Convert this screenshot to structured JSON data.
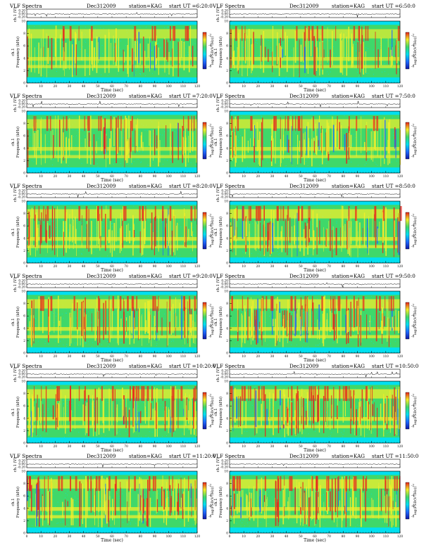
{
  "header_fields": {
    "title": "VLF Spectra",
    "date": "Dec312009",
    "station": "station=KAG",
    "start_prefix": "start UT ="
  },
  "axis_labels": {
    "ch1_top": "ch.1",
    "ch1_unit": "(V)",
    "ylabel_ch1": "ch.1",
    "ylabel_freq": "Frequency (kHz)",
    "xlabel": "Time (sec)",
    "colorbar_label": "log(PSD(V²/Hz))"
  },
  "x_ticks": [
    "0",
    "10",
    "20",
    "30",
    "40",
    "50",
    "60",
    "70",
    "80",
    "90",
    "100",
    "110",
    "120"
  ],
  "y_ticks": [
    "0",
    "2",
    "4",
    "6",
    "8",
    "10"
  ],
  "wave_ticks": [
    "0.20",
    "0.00",
    "-0.20"
  ],
  "colorbar_ticks": [
    "-2",
    "-4",
    "-6",
    "-8"
  ],
  "colors": {
    "background_cyan": "#00e0f0",
    "band_green": "#3fd86a",
    "yellow": "#f5ef2a",
    "red": "#e8231b",
    "blue": "#1f6bff",
    "dark_blue": "#1017a8"
  },
  "chart_data": [
    {
      "type": "heatmap",
      "panel": "row1-left",
      "start_ut": "6:20:0",
      "title": "VLF Spectra",
      "date": "Dec312009",
      "station": "KAG",
      "xlabel": "Time (sec)",
      "ylabel": "Frequency (kHz)",
      "xlim": [
        0,
        120
      ],
      "ylim": [
        0,
        10
      ],
      "waveform_ylim": [
        -0.2,
        0.2
      ],
      "activity": 0.35
    },
    {
      "type": "heatmap",
      "panel": "row1-right",
      "start_ut": "6:50:0",
      "title": "VLF Spectra",
      "date": "Dec312009",
      "station": "KAG",
      "xlabel": "Time (sec)",
      "ylabel": "Frequency (kHz)",
      "xlim": [
        0,
        120
      ],
      "ylim": [
        0,
        10
      ],
      "waveform_ylim": [
        -0.2,
        0.2
      ],
      "activity": 0.4
    },
    {
      "type": "heatmap",
      "panel": "row2-left",
      "start_ut": "7:20:0",
      "title": "VLF Spectra",
      "date": "Dec312009",
      "station": "KAG",
      "xlabel": "Time (sec)",
      "ylabel": "Frequency (kHz)",
      "xlim": [
        0,
        120
      ],
      "ylim": [
        0,
        10
      ],
      "waveform_ylim": [
        -0.2,
        0.2
      ],
      "activity": 0.42
    },
    {
      "type": "heatmap",
      "panel": "row2-right",
      "start_ut": "7:50:0",
      "title": "VLF Spectra",
      "date": "Dec312009",
      "station": "KAG",
      "xlabel": "Time (sec)",
      "ylabel": "Frequency (kHz)",
      "xlim": [
        0,
        120
      ],
      "ylim": [
        0,
        10
      ],
      "waveform_ylim": [
        -0.2,
        0.2
      ],
      "activity": 0.48
    },
    {
      "type": "heatmap",
      "panel": "row3-left",
      "start_ut": "8:20:0",
      "title": "VLF Spectra",
      "date": "Dec312009",
      "station": "KAG",
      "xlabel": "Time (sec)",
      "ylabel": "Frequency (kHz)",
      "xlim": [
        0,
        120
      ],
      "ylim": [
        0,
        10
      ],
      "waveform_ylim": [
        -0.2,
        0.2
      ],
      "activity": 0.55
    },
    {
      "type": "heatmap",
      "panel": "row3-right",
      "start_ut": "8:50:0",
      "title": "VLF Spectra",
      "date": "Dec312009",
      "station": "KAG",
      "xlabel": "Time (sec)",
      "ylabel": "Frequency (kHz)",
      "xlim": [
        0,
        120
      ],
      "ylim": [
        0,
        10
      ],
      "waveform_ylim": [
        -0.2,
        0.2
      ],
      "activity": 0.6
    },
    {
      "type": "heatmap",
      "panel": "row4-left",
      "start_ut": "9:20:0",
      "title": "VLF Spectra",
      "date": "Dec312009",
      "station": "KAG",
      "xlabel": "Time (sec)",
      "ylabel": "Frequency (kHz)",
      "xlim": [
        0,
        120
      ],
      "ylim": [
        0,
        10
      ],
      "waveform_ylim": [
        -0.2,
        0.2
      ],
      "activity": 0.58
    },
    {
      "type": "heatmap",
      "panel": "row4-right",
      "start_ut": "9:50:0",
      "title": "VLF Spectra",
      "date": "Dec312009",
      "station": "KAG",
      "xlabel": "Time (sec)",
      "ylabel": "Frequency (kHz)",
      "xlim": [
        0,
        120
      ],
      "ylim": [
        0,
        10
      ],
      "waveform_ylim": [
        -0.2,
        0.2
      ],
      "activity": 0.62
    },
    {
      "type": "heatmap",
      "panel": "row5-left",
      "start_ut": "10:20:0",
      "title": "VLF Spectra",
      "date": "Dec312009",
      "station": "KAG",
      "xlabel": "Time (sec)",
      "ylabel": "Frequency (kHz)",
      "xlim": [
        0,
        120
      ],
      "ylim": [
        0,
        10
      ],
      "waveform_ylim": [
        -0.2,
        0.2
      ],
      "activity": 0.6
    },
    {
      "type": "heatmap",
      "panel": "row5-right",
      "start_ut": "10:50:0",
      "title": "VLF Spectra",
      "date": "Dec312009",
      "station": "KAG",
      "xlabel": "Time (sec)",
      "ylabel": "Frequency (kHz)",
      "xlim": [
        0,
        120
      ],
      "ylim": [
        0,
        10
      ],
      "waveform_ylim": [
        -0.2,
        0.2
      ],
      "activity": 0.66
    },
    {
      "type": "heatmap",
      "panel": "row6-left",
      "start_ut": "11:20:0",
      "title": "VLF Spectra",
      "date": "Dec312009",
      "station": "KAG",
      "xlabel": "Time (sec)",
      "ylabel": "Frequency (kHz)",
      "xlim": [
        0,
        120
      ],
      "ylim": [
        0,
        10
      ],
      "waveform_ylim": [
        -0.2,
        0.2
      ],
      "activity": 0.64
    },
    {
      "type": "heatmap",
      "panel": "row6-right",
      "start_ut": "11:50:0",
      "title": "VLF Spectra",
      "date": "Dec312009",
      "station": "KAG",
      "xlabel": "Time (sec)",
      "ylabel": "Frequency (kHz)",
      "xlim": [
        0,
        120
      ],
      "ylim": [
        0,
        10
      ],
      "waveform_ylim": [
        -0.2,
        0.2
      ],
      "activity": 0.68
    }
  ]
}
